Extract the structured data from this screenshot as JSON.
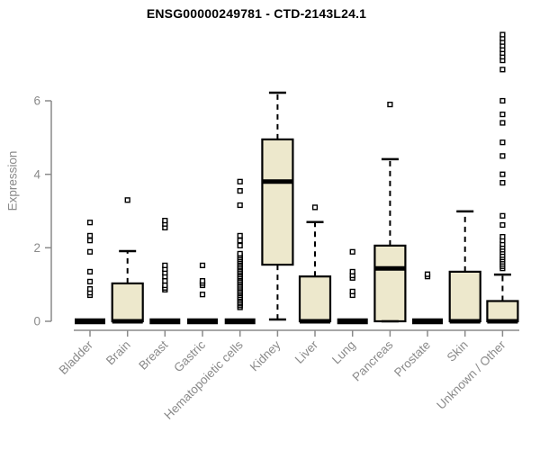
{
  "title": "ENSG00000249781 - CTD-2143L24.1",
  "chart_data": {
    "type": "boxplot",
    "title": "ENSG00000249781 - CTD-2143L24.1",
    "xlabel": "",
    "ylabel": "Expression",
    "yticks": [
      0,
      2,
      4,
      6
    ],
    "ylim": [
      0,
      7.9
    ],
    "grid": false,
    "legend": "none",
    "colors": {
      "box_fill": "#EDE8CC",
      "box_border": "#000000",
      "median": "#000000",
      "whisker": "#000000",
      "outlier_stroke": "#000000",
      "outlier_fill": "#ffffff",
      "axis": "#8a8a8a",
      "axis_text": "#8a8a8a",
      "title_text": "#000000",
      "background": "#ffffff"
    },
    "categories": [
      "Bladder",
      "Brain",
      "Breast",
      "Gastric",
      "Hematopoietic cells",
      "Kidney",
      "Liver",
      "Lung",
      "Pancreas",
      "Prostate",
      "Skin",
      "Unknown / Other"
    ],
    "boxes": [
      {
        "label": "Bladder",
        "whisker_low": 0,
        "q1": 0,
        "median": 0,
        "q3": 0,
        "whisker_high": 0,
        "outliers": [
          0.71,
          0.78,
          0.88,
          1.08,
          1.35,
          1.89,
          2.2,
          2.33,
          2.69
        ]
      },
      {
        "label": "Brain",
        "whisker_low": 0,
        "q1": 0,
        "median": 0,
        "q3": 1.03,
        "whisker_high": 1.91,
        "outliers": [
          3.3
        ]
      },
      {
        "label": "Breast",
        "whisker_low": 0,
        "q1": 0,
        "median": 0,
        "q3": 0,
        "whisker_high": 0,
        "outliers": [
          0.86,
          0.91,
          0.98,
          1.1,
          1.22,
          1.32,
          1.42,
          1.52,
          2.55,
          2.65,
          2.74
        ]
      },
      {
        "label": "Gastric",
        "whisker_low": 0,
        "q1": 0,
        "median": 0,
        "q3": 0,
        "whisker_high": 0,
        "outliers": [
          0.73,
          0.98,
          1.04,
          1.1,
          1.52
        ]
      },
      {
        "label": "Hematopoietic cells",
        "whisker_low": 0,
        "q1": 0,
        "median": 0,
        "q3": 0,
        "whisker_high": 0,
        "outliers": [
          0.38,
          0.43,
          0.48,
          0.52,
          0.57,
          0.62,
          0.66,
          0.71,
          0.76,
          0.8,
          0.85,
          0.9,
          0.94,
          0.99,
          1.04,
          1.08,
          1.13,
          1.18,
          1.22,
          1.27,
          1.32,
          1.36,
          1.41,
          1.46,
          1.5,
          1.55,
          1.6,
          1.64,
          1.69,
          1.74,
          1.79,
          1.84,
          2.06,
          2.2,
          2.33,
          3.16,
          3.55,
          3.8
        ]
      },
      {
        "label": "Kidney",
        "whisker_low": 0.05,
        "q1": 1.54,
        "median": 3.8,
        "q3": 4.95,
        "whisker_high": 6.22,
        "outliers": []
      },
      {
        "label": "Liver",
        "whisker_low": 0,
        "q1": 0,
        "median": 0,
        "q3": 1.22,
        "whisker_high": 2.7,
        "outliers": [
          3.1
        ]
      },
      {
        "label": "Lung",
        "whisker_low": 0,
        "q1": 0,
        "median": 0,
        "q3": 0,
        "whisker_high": 0,
        "outliers": [
          0.71,
          0.81,
          1.18,
          1.25,
          1.35,
          1.89
        ]
      },
      {
        "label": "Pancreas",
        "whisker_low": 0,
        "q1": 0,
        "median": 1.44,
        "q3": 2.06,
        "whisker_high": 4.41,
        "outliers": [
          5.9
        ]
      },
      {
        "label": "Prostate",
        "whisker_low": 0,
        "q1": 0,
        "median": 0,
        "q3": 0,
        "whisker_high": 0,
        "outliers": [
          1.22,
          1.28
        ]
      },
      {
        "label": "Skin",
        "whisker_low": 0,
        "q1": 0,
        "median": 0,
        "q3": 1.35,
        "whisker_high": 2.99,
        "outliers": []
      },
      {
        "label": "Unknown / Other",
        "whisker_low": 0,
        "q1": 0,
        "median": 0,
        "q3": 0.55,
        "whisker_high": 1.27,
        "outliers": [
          1.44,
          1.5,
          1.56,
          1.62,
          1.68,
          1.74,
          1.8,
          1.88,
          1.95,
          2.02,
          2.1,
          2.2,
          2.3,
          2.62,
          2.87,
          3.77,
          4.0,
          4.5,
          4.87,
          5.4,
          5.63,
          6.0,
          6.85,
          7.1,
          7.2,
          7.3,
          7.4,
          7.5,
          7.6,
          7.7,
          7.8
        ]
      }
    ]
  }
}
